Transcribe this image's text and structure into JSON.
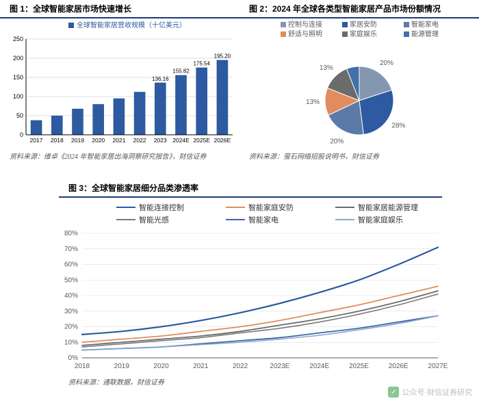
{
  "panel1": {
    "title": "图 1：全球智能家居市场快速增长",
    "legend_label": "全球智能家居营收规模（十亿美元）",
    "legend_marker_color": "#2d5aa0",
    "source": "资料来源：维卓《2024 年智能家居出海洞察研究报告》，财信证券",
    "chart": {
      "type": "bar",
      "categories": [
        "2017",
        "2018",
        "2019",
        "2020",
        "2021",
        "2022",
        "2023",
        "2024E",
        "2025E",
        "2026E"
      ],
      "values": [
        38,
        50,
        68,
        80,
        95,
        112,
        136.16,
        155.82,
        175.54,
        195.2
      ],
      "value_labels": [
        "",
        "",
        "",
        "",
        "",
        "",
        "136.16",
        "155.82",
        "175.54",
        "195.20"
      ],
      "bar_color": "#2d5aa0",
      "ylim": [
        0,
        250
      ],
      "ytick_step": 50,
      "axis_color": "#000000",
      "grid_color": "#bfbfbf",
      "background_color": "#ffffff",
      "label_fontsize": 9,
      "bar_width": 0.55
    }
  },
  "panel2": {
    "title": "图 2：2024 年全球各类型智能家居产品市场份额情况",
    "source": "资料来源：萤石网络招股说明书，财信证券",
    "chart": {
      "type": "pie",
      "legend_items": [
        "控制与连接",
        "家居安防",
        "智能家电",
        "舒适与照明",
        "家庭娱乐",
        "能源管理"
      ],
      "values": [
        20,
        28,
        20,
        13,
        13,
        6
      ],
      "display_labels": [
        "20%",
        "28%",
        "20%",
        "13%",
        "13%",
        ""
      ],
      "colors": [
        "#8497b0",
        "#2d5aa0",
        "#5b7aa8",
        "#e28b5f",
        "#6b6b6b",
        "#4270aa"
      ],
      "legend_marker_colors": [
        "#8497b0",
        "#2d5aa0",
        "#5b7aa8",
        "#e28b5f",
        "#6b6b6b",
        "#4270aa"
      ],
      "label_fontsize": 10,
      "label_color": "#595959",
      "background_color": "#ffffff"
    }
  },
  "panel3": {
    "title": "图 3：全球智能家居细分品类渗透率",
    "source": "资料来源：通联数据，财信证券",
    "chart": {
      "type": "line",
      "categories": [
        "2018",
        "2019",
        "2020",
        "2021",
        "2022",
        "2023E",
        "2024E",
        "2025E",
        "2026E",
        "2027E"
      ],
      "series": [
        {
          "name": "智能连接控制",
          "color": "#2d5aa0",
          "width": 2.2,
          "values": [
            15,
            17,
            20,
            24,
            29,
            35,
            42,
            50,
            60,
            71
          ]
        },
        {
          "name": "智能家庭安防",
          "color": "#e28b5f",
          "width": 1.8,
          "values": [
            10,
            12,
            14,
            17,
            20,
            24,
            29,
            34,
            40,
            46
          ]
        },
        {
          "name": "智能家居能源管理",
          "color": "#6b6b6b",
          "width": 1.8,
          "values": [
            8,
            10,
            12,
            14,
            17,
            21,
            25,
            30,
            36,
            43
          ]
        },
        {
          "name": "智能光感",
          "color": "#7a7a7a",
          "width": 1.6,
          "values": [
            7,
            9,
            11,
            13,
            16,
            19,
            23,
            28,
            34,
            41
          ]
        },
        {
          "name": "智能家电",
          "color": "#3a66a6",
          "width": 1.8,
          "values": [
            5,
            6,
            7,
            9,
            11,
            13,
            16,
            19,
            23,
            27
          ]
        },
        {
          "name": "智能家庭娱乐",
          "color": "#8aa9c9",
          "width": 1.6,
          "values": [
            5,
            6,
            7,
            8.5,
            10,
            12,
            14.5,
            18,
            22,
            27
          ]
        }
      ],
      "legend_cols": 3,
      "ylim": [
        0,
        80
      ],
      "ytick_step": 10,
      "ytick_format": "%",
      "axis_color": "#595959",
      "grid_color": "#d9d9d9",
      "background_color": "#ffffff",
      "label_fontsize": 10,
      "line_style": "smooth"
    }
  },
  "watermark": {
    "icon_glyph": "✓",
    "text": "公众号·财信证券研究"
  }
}
